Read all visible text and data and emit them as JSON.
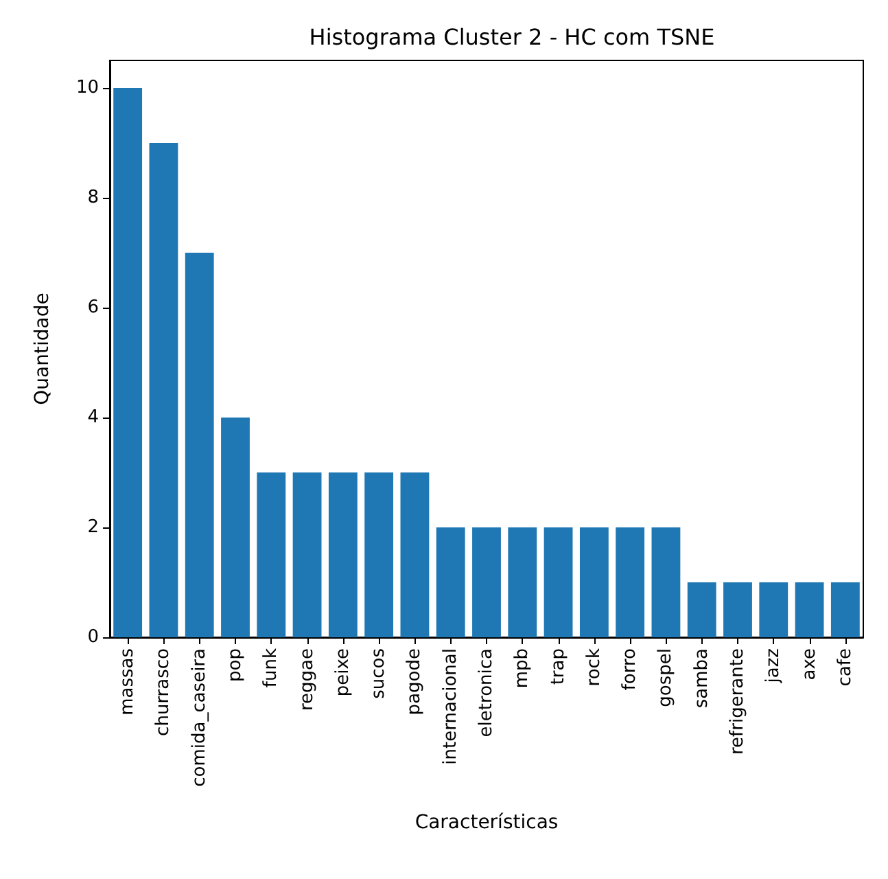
{
  "chart_data": {
    "type": "bar",
    "title": "Histograma Cluster 2 - HC com TSNE",
    "xlabel": "Características",
    "ylabel": "Quantidade",
    "categories": [
      "massas",
      "churrasco",
      "comida_caseira",
      "pop",
      "funk",
      "reggae",
      "peixe",
      "sucos",
      "pagode",
      "internacional",
      "eletronica",
      "mpb",
      "trap",
      "rock",
      "forro",
      "gospel",
      "samba",
      "refrigerante",
      "jazz",
      "axe",
      "cafe"
    ],
    "values": [
      10,
      9,
      7,
      4,
      3,
      3,
      3,
      3,
      3,
      2,
      2,
      2,
      2,
      2,
      2,
      2,
      1,
      1,
      1,
      1,
      1
    ],
    "color": "#1f77b4",
    "ylim": [
      0,
      10.5
    ],
    "yticks": [
      0,
      2,
      4,
      6,
      8,
      10
    ],
    "grid": false
  }
}
